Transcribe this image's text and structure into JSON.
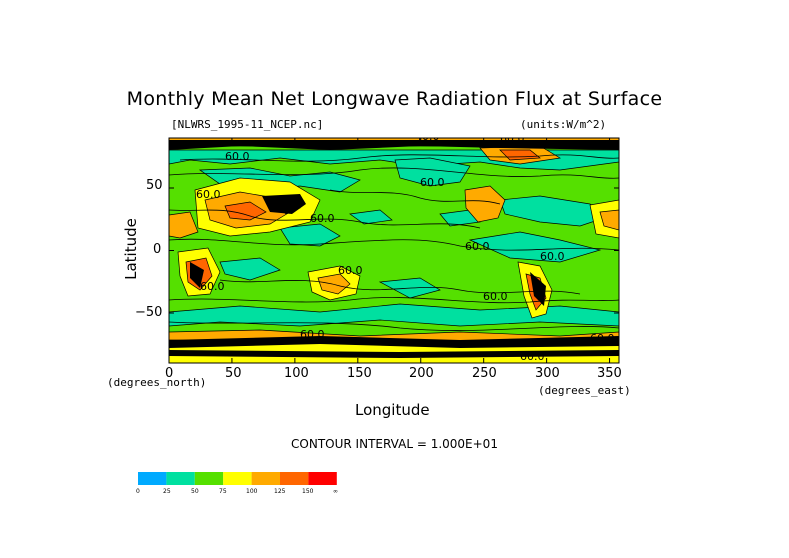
{
  "chart_data": {
    "type": "heatmap",
    "title": "Monthly Mean Net Longwave Radiation Flux at Surface",
    "source_label": "[NLWRS_1995-11_NCEP.nc]",
    "units_label": "(units:W/m^2)",
    "xlabel": "Longitude",
    "ylabel": "Latitude",
    "x_unit_label": "(degrees_east)",
    "y_unit_label": "(degrees_north)",
    "xlim": [
      0,
      357.5
    ],
    "ylim": [
      -90,
      90
    ],
    "x_ticks": [
      "0",
      "50",
      "100",
      "150",
      "200",
      "250",
      "300",
      "350"
    ],
    "y_ticks": [
      "50",
      "0",
      "−50"
    ],
    "contour_interval": "CONTOUR INTERVAL = 1.000E+01",
    "contour_labels": [
      "40.0",
      "60.0",
      "60.0",
      "60.0",
      "60.0",
      "60.0",
      "60.0",
      "60.0",
      "60.0",
      "60.0",
      "60.0",
      "60.0",
      "60.0",
      "60.0"
    ],
    "colorbar": {
      "ticks": [
        "0",
        "25",
        "50",
        "75",
        "100",
        "125",
        "150",
        "∞"
      ],
      "colors": [
        "#00aaff",
        "#00e0a0",
        "#55e000",
        "#ffff00",
        "#ffaa00",
        "#ff6600",
        "#ff0000"
      ]
    }
  }
}
